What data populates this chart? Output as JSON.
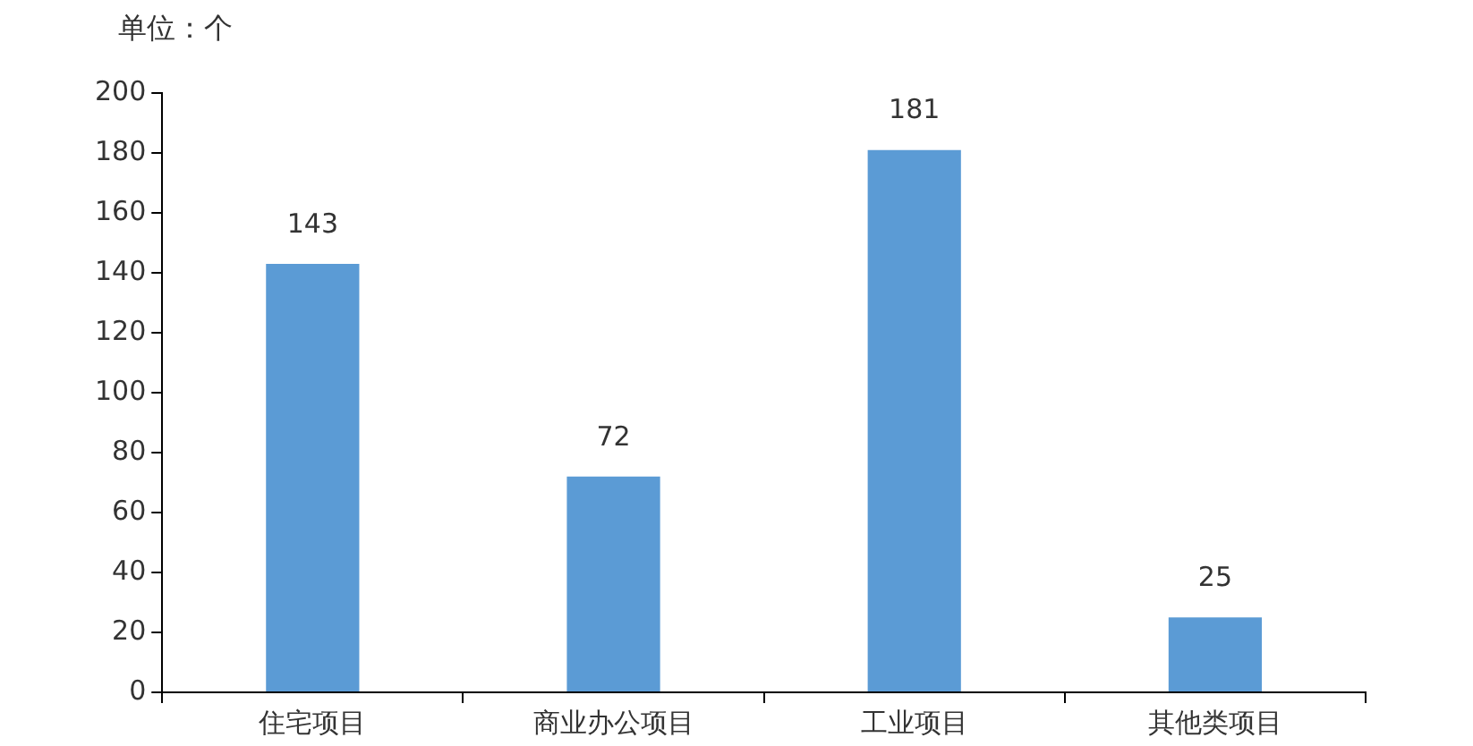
{
  "chart_data": {
    "type": "bar",
    "ylabel": "单位：个",
    "categories": [
      "住宅项目",
      "商业办公项目",
      "工业项目",
      "其他类项目"
    ],
    "values": [
      143,
      72,
      181,
      25
    ],
    "color": "#5b9bd5",
    "ylim": [
      0,
      200
    ],
    "yticks": [
      0,
      20,
      40,
      60,
      80,
      100,
      120,
      140,
      160,
      180,
      200
    ],
    "grid": false,
    "legend": false,
    "data_labels": true
  }
}
